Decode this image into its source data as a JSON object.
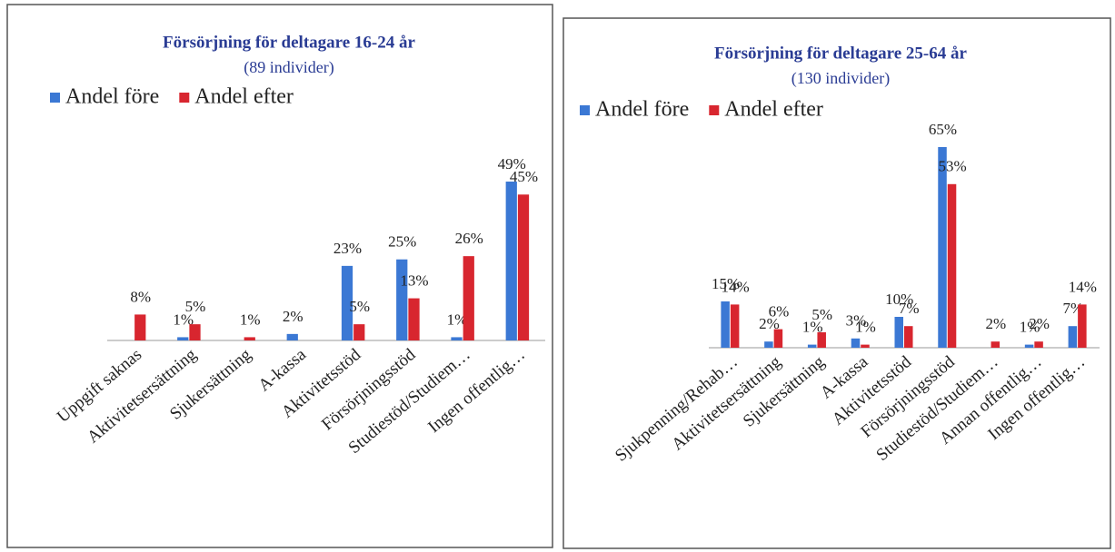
{
  "chart_data": [
    {
      "type": "bar",
      "title": "Försörjning för deltagare 16-24 år",
      "subtitle": "(89 individer)",
      "categories": [
        "Uppgift saknas",
        "Aktivitetsersättning",
        "Sjukersättning",
        "A-kassa",
        "Aktivitetsstöd",
        "Försörjningsstöd",
        "Studiestöd/Studiem…",
        "Ingen offentlig…"
      ],
      "series": [
        {
          "name": "Andel före",
          "color": "#3b78d4",
          "values": [
            null,
            1,
            null,
            2,
            23,
            25,
            1,
            49
          ],
          "value_labels": [
            null,
            "1%",
            null,
            "2%",
            "23%",
            "25%",
            "1%",
            "49%"
          ]
        },
        {
          "name": "Andel efter",
          "color": "#d8262f",
          "values": [
            8,
            5,
            1,
            null,
            5,
            13,
            26,
            45
          ],
          "value_labels": [
            "8%",
            "5%",
            "1%",
            null,
            "5%",
            "13%",
            "26%",
            "45%"
          ]
        }
      ]
    },
    {
      "type": "bar",
      "title": "Försörjning för deltagare 25-64 år",
      "subtitle": "(130 individer)",
      "categories": [
        "Sjukpenning/Rehab…",
        "Aktivitetsersättning",
        "Sjukersättning",
        "A-kassa",
        "Aktivitetsstöd",
        "Försörjningsstöd",
        "Studiestöd/Studiem…",
        "Annan offentlig…",
        "Ingen offentlig…"
      ],
      "series": [
        {
          "name": "Andel före",
          "color": "#3b78d4",
          "values": [
            15,
            2,
            1,
            3,
            10,
            65,
            null,
            1,
            7
          ],
          "value_labels": [
            "15%",
            "2%",
            "1%",
            "3%",
            "10%",
            "65%",
            null,
            "1%",
            "7%"
          ]
        },
        {
          "name": "Andel efter",
          "color": "#d8262f",
          "values": [
            14,
            6,
            5,
            1,
            7,
            53,
            2,
            2,
            14
          ],
          "value_labels": [
            "14%",
            "6%",
            "5%",
            "1%",
            "7%",
            "53%",
            "2%",
            "2%",
            "14%"
          ]
        }
      ]
    }
  ]
}
